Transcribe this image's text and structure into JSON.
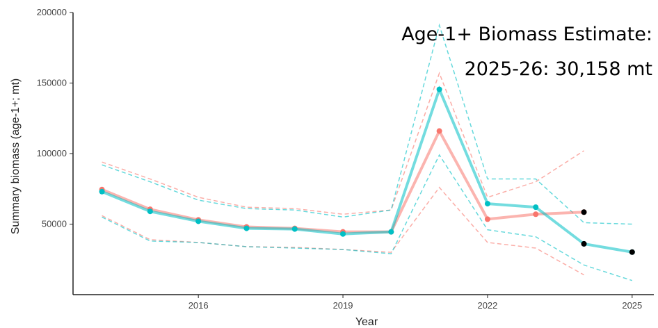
{
  "chart_data": {
    "type": "line",
    "x_label": "Year",
    "y_label": "Summary biomass (age-1+; mt)",
    "annotations": [
      "Age-1+ Biomass Estimate:",
      "2025-26: 30,158 mt"
    ],
    "x": [
      2014,
      2015,
      2016,
      2017,
      2018,
      2019,
      2020,
      2021,
      2022,
      2023,
      2024,
      2025
    ],
    "xlim": [
      2013.4,
      2025.45
    ],
    "xticks": [
      2016,
      2019,
      2022,
      2025
    ],
    "ylim": [
      0,
      200000
    ],
    "yticks": [
      50000,
      100000,
      150000,
      200000
    ],
    "series": [
      {
        "color": "#f8766d",
        "values": [
          74500,
          60500,
          53000,
          48000,
          47000,
          44500,
          44500,
          116000,
          53500,
          57000,
          58500,
          null
        ],
        "upper": [
          94000,
          82000,
          69000,
          62000,
          61000,
          57000,
          60000,
          157000,
          69000,
          80000,
          102000,
          null
        ],
        "lower": [
          56000,
          39000,
          37000,
          34000,
          33500,
          32000,
          30000,
          76000,
          37000,
          33000,
          14000,
          null
        ]
      },
      {
        "color": "#00bfc4",
        "values": [
          73000,
          59000,
          52000,
          47000,
          46500,
          43000,
          44500,
          145500,
          64500,
          62000,
          36000,
          30158
        ],
        "upper": [
          92000,
          80000,
          67000,
          61000,
          60000,
          55000,
          60000,
          191000,
          82000,
          82000,
          51000,
          50000
        ],
        "lower": [
          55000,
          38000,
          37000,
          34000,
          33000,
          32000,
          29000,
          99000,
          46000,
          41000,
          21000,
          10000
        ]
      }
    ],
    "highlight": {
      "color": "#000000",
      "x": [
        2024,
        2024,
        2025
      ],
      "values": [
        58500,
        36000,
        30158
      ]
    }
  }
}
